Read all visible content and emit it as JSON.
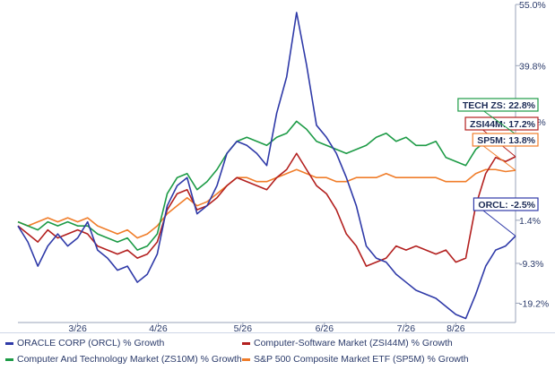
{
  "chart_data": {
    "type": "line",
    "x_ticks": [
      "3/26",
      "4/26",
      "5/26",
      "6/26",
      "7/26",
      "8/26"
    ],
    "y_ticks": [
      "55.0%",
      "39.8%",
      "25.9%",
      "1.4%",
      "-9.3%",
      "-19.2%"
    ],
    "ylim": [
      -24,
      55
    ],
    "grid": false,
    "legend_position": "bottom",
    "series": [
      {
        "name": "ORACLE CORP (ORCL) % Growth",
        "end_label": "ORCL: -2.5%",
        "color": "#2f3aa8",
        "x": [
          0,
          0.02,
          0.04,
          0.06,
          0.08,
          0.1,
          0.12,
          0.14,
          0.16,
          0.18,
          0.2,
          0.22,
          0.24,
          0.26,
          0.28,
          0.3,
          0.32,
          0.34,
          0.36,
          0.38,
          0.4,
          0.42,
          0.44,
          0.46,
          0.48,
          0.5,
          0.52,
          0.54,
          0.56,
          0.58,
          0.6,
          0.62,
          0.64,
          0.66,
          0.68,
          0.7,
          0.72,
          0.74,
          0.76,
          0.78,
          0.8,
          0.82,
          0.84,
          0.86,
          0.88,
          0.9,
          0.92,
          0.94,
          0.96,
          0.98,
          1
        ],
        "values": [
          0,
          -4,
          -10,
          -5,
          -2,
          -5,
          -3,
          1,
          -6,
          -8,
          -11,
          -10,
          -14,
          -12,
          -7,
          5,
          10,
          12,
          3,
          5,
          10,
          18,
          21,
          20,
          18,
          15,
          28,
          37,
          53,
          40,
          25,
          22,
          18,
          12,
          5,
          -5,
          -8,
          -9,
          -12,
          -14,
          -16,
          -17,
          -18,
          -20,
          -22,
          -23,
          -17,
          -10,
          -6,
          -5,
          -2.5
        ]
      },
      {
        "name": "Computer-Software Market (ZSI44M) % Growth",
        "end_label": "ZSI44M: 17.2%",
        "color": "#b3201f",
        "x": [
          0,
          0.02,
          0.04,
          0.06,
          0.08,
          0.1,
          0.12,
          0.14,
          0.16,
          0.18,
          0.2,
          0.22,
          0.24,
          0.26,
          0.28,
          0.3,
          0.32,
          0.34,
          0.36,
          0.38,
          0.4,
          0.42,
          0.44,
          0.46,
          0.48,
          0.5,
          0.52,
          0.54,
          0.56,
          0.58,
          0.6,
          0.62,
          0.64,
          0.66,
          0.68,
          0.7,
          0.72,
          0.74,
          0.76,
          0.78,
          0.8,
          0.82,
          0.84,
          0.86,
          0.88,
          0.9,
          0.92,
          0.94,
          0.96,
          0.98,
          1
        ],
        "values": [
          0,
          -2,
          -4,
          -1,
          -3,
          -2,
          -1,
          -2,
          -5,
          -6,
          -7,
          -6,
          -8,
          -7,
          -4,
          4,
          8,
          9,
          4,
          5,
          7,
          10,
          12,
          11,
          10,
          9,
          12,
          14,
          18,
          14,
          10,
          8,
          4,
          -2,
          -5,
          -10,
          -9,
          -8,
          -5,
          -6,
          -5,
          -6,
          -7,
          -6,
          -9,
          -8,
          5,
          13,
          17,
          16,
          17.2
        ]
      },
      {
        "name": "Computer And Technology Market (ZS10M) % Growth",
        "end_label": "TECH ZS: 22.8%",
        "color": "#1d9b46",
        "x": [
          0,
          0.02,
          0.04,
          0.06,
          0.08,
          0.1,
          0.12,
          0.14,
          0.16,
          0.18,
          0.2,
          0.22,
          0.24,
          0.26,
          0.28,
          0.3,
          0.32,
          0.34,
          0.36,
          0.38,
          0.4,
          0.42,
          0.44,
          0.46,
          0.48,
          0.5,
          0.52,
          0.54,
          0.56,
          0.58,
          0.6,
          0.62,
          0.64,
          0.66,
          0.68,
          0.7,
          0.72,
          0.74,
          0.76,
          0.78,
          0.8,
          0.82,
          0.84,
          0.86,
          0.88,
          0.9,
          0.92,
          0.94,
          0.96,
          0.98,
          1
        ],
        "values": [
          1,
          0,
          -1,
          1,
          0,
          1,
          0,
          0,
          -2,
          -3,
          -4,
          -3,
          -6,
          -5,
          -2,
          8,
          12,
          13,
          9,
          11,
          14,
          18,
          21,
          22,
          21,
          20,
          22,
          23,
          26,
          24,
          21,
          20,
          19,
          18,
          19,
          20,
          22,
          23,
          21,
          22,
          20,
          20,
          21,
          17,
          16,
          15,
          19,
          21,
          22,
          22,
          22.8
        ]
      },
      {
        "name": "S&P 500 Composite Market ETF (SP5M) % Growth",
        "end_label": "SP5M: 13.8%",
        "color": "#f07d2a",
        "x": [
          0,
          0.02,
          0.04,
          0.06,
          0.08,
          0.1,
          0.12,
          0.14,
          0.16,
          0.18,
          0.2,
          0.22,
          0.24,
          0.26,
          0.28,
          0.3,
          0.32,
          0.34,
          0.36,
          0.38,
          0.4,
          0.42,
          0.44,
          0.46,
          0.48,
          0.5,
          0.52,
          0.54,
          0.56,
          0.58,
          0.6,
          0.62,
          0.64,
          0.66,
          0.68,
          0.7,
          0.72,
          0.74,
          0.76,
          0.78,
          0.8,
          0.82,
          0.84,
          0.86,
          0.88,
          0.9,
          0.92,
          0.94,
          0.96,
          0.98,
          1
        ],
        "values": [
          1,
          0,
          1,
          2,
          1,
          2,
          1,
          2,
          0,
          -1,
          -2,
          -1,
          -3,
          -2,
          0,
          3,
          5,
          7,
          5,
          6,
          8,
          10,
          12,
          12,
          11,
          11,
          12,
          13,
          14,
          13,
          12,
          12,
          11,
          11,
          12,
          12,
          12,
          13,
          12,
          12,
          12,
          12,
          12,
          11,
          11,
          11,
          13,
          14,
          14,
          13.5,
          13.8
        ]
      }
    ]
  }
}
